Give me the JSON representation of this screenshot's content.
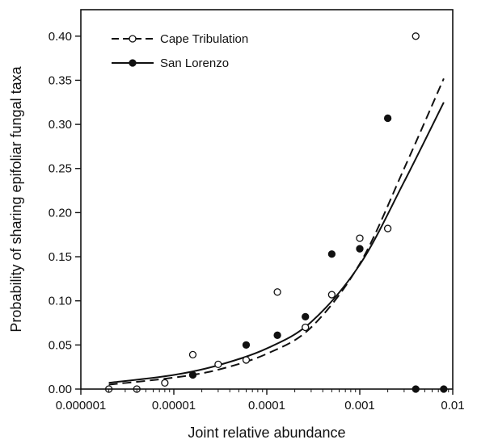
{
  "chart_data": {
    "type": "scatter",
    "xlabel": "Joint relative abundance",
    "ylabel": "Probability of sharing epifoliar fungal taxa",
    "x_scale": "log",
    "xlim": [
      1e-06,
      0.01
    ],
    "ylim": [
      0,
      0.43
    ],
    "x_ticks": [
      1e-06,
      1e-05,
      0.0001,
      0.001,
      0.01
    ],
    "x_tick_labels": [
      "0.000001",
      "0.00001",
      "0.0001",
      "0.001",
      "0.01"
    ],
    "y_ticks": [
      0,
      0.05,
      0.1,
      0.15,
      0.2,
      0.25,
      0.3,
      0.35,
      0.4
    ],
    "y_tick_labels": [
      "0.00",
      "0.05",
      "0.10",
      "0.15",
      "0.20",
      "0.25",
      "0.30",
      "0.35",
      "0.40"
    ],
    "grid": false,
    "legend_position": "top-left",
    "series": [
      {
        "name": "Cape Tribulation",
        "marker": "open-circle",
        "line_style": "dashed",
        "color": "#111111",
        "points": [
          [
            2e-06,
            0.0
          ],
          [
            4e-06,
            0.0
          ],
          [
            8e-06,
            0.007
          ],
          [
            1.6e-05,
            0.039
          ],
          [
            3e-05,
            0.028
          ],
          [
            6e-05,
            0.033
          ],
          [
            0.00013,
            0.11
          ],
          [
            0.00026,
            0.07
          ],
          [
            0.0005,
            0.107
          ],
          [
            0.001,
            0.171
          ],
          [
            0.002,
            0.182
          ],
          [
            0.004,
            0.4
          ]
        ],
        "fit": [
          [
            2e-06,
            0.005
          ],
          [
            1e-05,
            0.013
          ],
          [
            3e-05,
            0.022
          ],
          [
            0.0001,
            0.04
          ],
          [
            0.0003,
            0.07
          ],
          [
            0.001,
            0.142
          ],
          [
            0.003,
            0.25
          ],
          [
            0.008,
            0.352
          ]
        ]
      },
      {
        "name": "San Lorenzo",
        "marker": "filled-circle",
        "line_style": "solid",
        "color": "#111111",
        "points": [
          [
            1.6e-05,
            0.016
          ],
          [
            6e-05,
            0.05
          ],
          [
            0.00013,
            0.061
          ],
          [
            0.00026,
            0.082
          ],
          [
            0.0005,
            0.153
          ],
          [
            0.001,
            0.159
          ],
          [
            0.002,
            0.307
          ],
          [
            0.004,
            0.0
          ],
          [
            0.008,
            0.0
          ]
        ],
        "fit": [
          [
            2e-06,
            0.007
          ],
          [
            1e-05,
            0.016
          ],
          [
            3e-05,
            0.027
          ],
          [
            0.0001,
            0.046
          ],
          [
            0.0003,
            0.076
          ],
          [
            0.001,
            0.141
          ],
          [
            0.003,
            0.235
          ],
          [
            0.008,
            0.325
          ]
        ]
      }
    ]
  }
}
